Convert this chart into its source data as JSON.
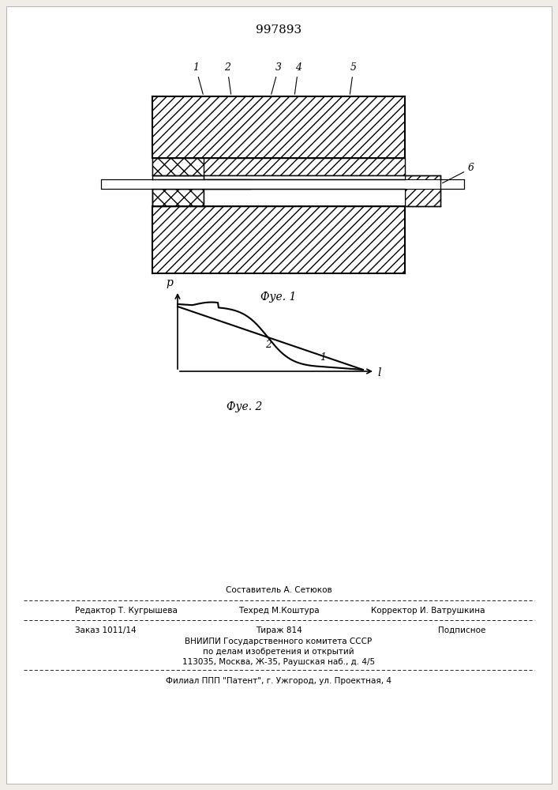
{
  "patent_number": "997893",
  "fig1_caption": "Фуе. 1",
  "fig2_caption": "Фуе. 2",
  "bg_color": "#f0ede8",
  "labels": [
    "1",
    "2",
    "3",
    "4",
    "5",
    "6"
  ],
  "graph_xlabel": "l",
  "graph_ylabel": "p",
  "curve1_label": "1",
  "curve2_label": "2",
  "footer_sestavitel": "Составитель А. Сетюков",
  "footer_redaktor": "Редактор Т. Кугрышева",
  "footer_tehred": "Техред М.Коштура",
  "footer_korrektor": "Корректор И. Ватрушкина",
  "footer_zakaz": "Заказ 1011/14",
  "footer_tirazh": "Тираж 814",
  "footer_podpisnoe": "Подписное",
  "footer_vniip1": "ВНИИПИ Государственного комитета СССР",
  "footer_vniip2": "по делам изобретения и открытий",
  "footer_addr": "113035, Москва, Ж-35, Раушская наб., д. 4/5",
  "footer_filial": "Филиал ППП \"Патент\", г. Ужгород, ул. Проектная, 4"
}
